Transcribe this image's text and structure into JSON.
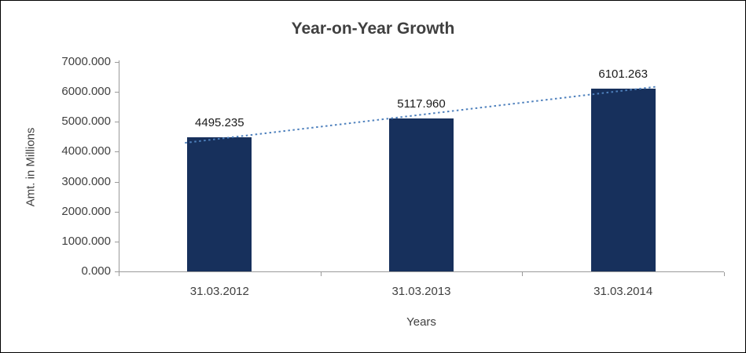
{
  "chart_data": {
    "type": "bar",
    "title": "Year-on-Year Growth",
    "xlabel": "Years",
    "ylabel": "Amt. in Millions",
    "categories": [
      "31.03.2012",
      "31.03.2013",
      "31.03.2014"
    ],
    "values": [
      4495.235,
      5117.96,
      6101.263
    ],
    "value_labels": [
      "4495.235",
      "5117.960",
      "6101.263"
    ],
    "ylim": [
      0,
      7000
    ],
    "yticks": [
      0,
      1000,
      2000,
      3000,
      4000,
      5000,
      6000,
      7000
    ],
    "ytick_labels": [
      "0.000",
      "1000.000",
      "2000.000",
      "3000.000",
      "4000.000",
      "5000.000",
      "6000.000",
      "7000.000"
    ],
    "grid": false,
    "legend": "none",
    "trendline": {
      "type": "linear",
      "style": "dotted",
      "color": "#4f81bd"
    },
    "colors": {
      "bar_fill": "#17305c",
      "axis_line": "#9a9a9a",
      "text": "#404040",
      "value_label": "#1a1a1a"
    }
  }
}
